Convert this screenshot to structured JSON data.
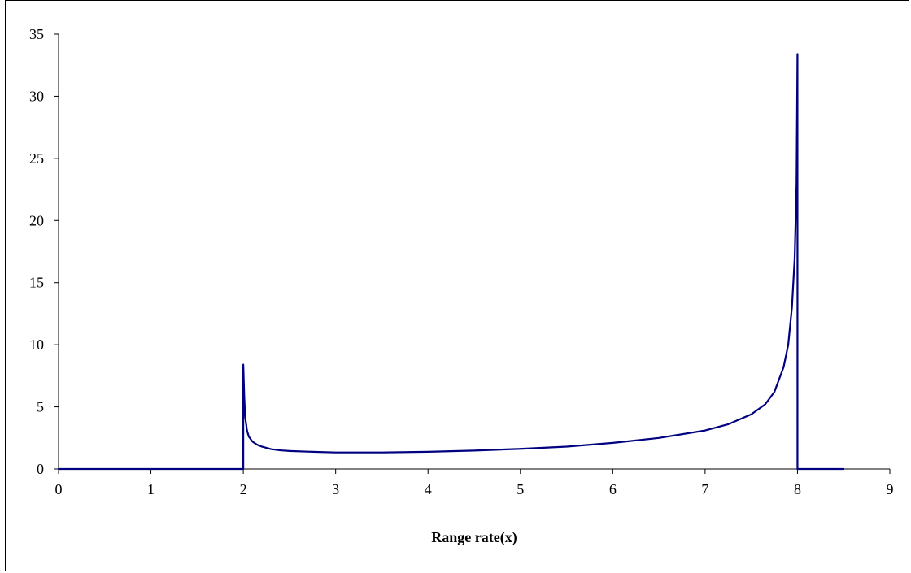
{
  "chart_data": {
    "type": "line",
    "title": "",
    "xlabel": "Range rate(x)",
    "ylabel": "",
    "xlim": [
      0,
      9
    ],
    "ylim": [
      0,
      35
    ],
    "x_ticks": [
      "0",
      "1",
      "2",
      "3",
      "4",
      "5",
      "6",
      "7",
      "8",
      "9"
    ],
    "y_ticks": [
      "0",
      "5",
      "10",
      "15",
      "20",
      "25",
      "30",
      "35"
    ],
    "grid": false,
    "legend": "none",
    "line_color": "#000080",
    "series": [
      {
        "x": [
          0,
          2.0,
          2.0,
          2.01,
          2.02,
          2.04,
          2.06,
          2.1,
          2.15,
          2.2,
          2.3,
          2.4,
          2.5,
          2.75,
          3.0,
          3.5,
          4.0,
          4.5,
          5.0,
          5.5,
          6.0,
          6.5,
          7.0,
          7.25,
          7.5,
          7.65,
          7.75,
          7.85,
          7.9,
          7.94,
          7.97,
          7.99,
          8.0,
          8.0,
          8.5
        ],
        "y": [
          0,
          0,
          8.4,
          5.9,
          4.2,
          3.1,
          2.6,
          2.2,
          1.95,
          1.8,
          1.6,
          1.5,
          1.45,
          1.38,
          1.33,
          1.33,
          1.38,
          1.48,
          1.62,
          1.8,
          2.1,
          2.5,
          3.1,
          3.6,
          4.4,
          5.2,
          6.2,
          8.2,
          10.0,
          13.0,
          17.0,
          23.0,
          33.4,
          0,
          0
        ]
      }
    ]
  }
}
